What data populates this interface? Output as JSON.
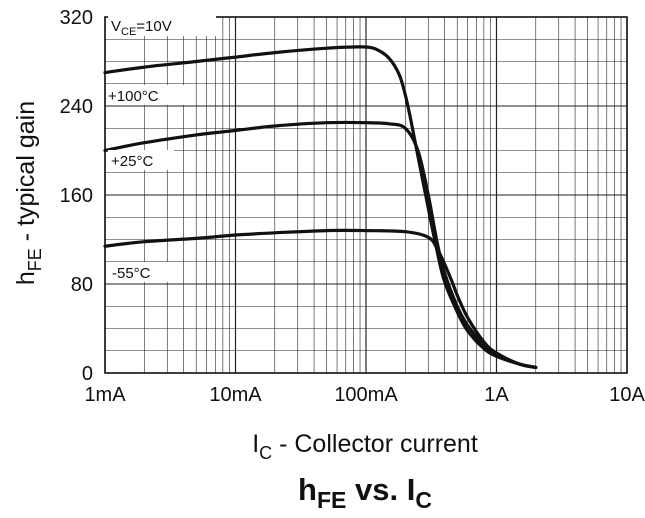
{
  "chart_data": {
    "type": "line",
    "title": "hFE vs. IC",
    "title_parts": {
      "main": "h",
      "main_sub": "FE",
      "mid": " vs. I",
      "end_sub": "C"
    },
    "xlabel": "IC - Collector current",
    "xlabel_parts": {
      "main": "I",
      "sub": "C",
      "rest": " - Collector current"
    },
    "ylabel": "hFE - typical gain",
    "ylabel_parts": {
      "main": "h",
      "sub": "FE",
      "rest": " - typical gain"
    },
    "x_scale": "log",
    "x_unit": "A",
    "xlim": [
      0.001,
      10
    ],
    "ylim": [
      0,
      320
    ],
    "grid": true,
    "x_ticks": [
      {
        "value": 0.001,
        "label": "1mA"
      },
      {
        "value": 0.01,
        "label": "10mA"
      },
      {
        "value": 0.1,
        "label": "100mA"
      },
      {
        "value": 1,
        "label": "1A"
      },
      {
        "value": 10,
        "label": "10A"
      }
    ],
    "y_ticks": [
      0,
      80,
      160,
      240,
      320
    ],
    "condition_note": {
      "main": "V",
      "sub": "CE",
      "rest": "=10V"
    },
    "series": [
      {
        "name": "+100°C",
        "x": [
          0.001,
          0.002,
          0.005,
          0.01,
          0.02,
          0.05,
          0.08,
          0.1,
          0.12,
          0.15,
          0.18,
          0.2,
          0.22,
          0.25,
          0.3,
          0.35,
          0.4,
          0.5,
          0.6,
          0.8,
          1.0,
          1.5,
          2.0
        ],
        "y": [
          270,
          275,
          280,
          284,
          288,
          292,
          293,
          293,
          291,
          283,
          268,
          250,
          228,
          195,
          148,
          110,
          82,
          55,
          38,
          22,
          15,
          8,
          5
        ]
      },
      {
        "name": "+25°C",
        "x": [
          0.001,
          0.002,
          0.005,
          0.01,
          0.02,
          0.05,
          0.1,
          0.15,
          0.2,
          0.25,
          0.3,
          0.35,
          0.4,
          0.5,
          0.6,
          0.8,
          1.0,
          1.5,
          2.0
        ],
        "y": [
          200,
          207,
          214,
          218,
          222,
          225,
          225,
          224,
          220,
          200,
          160,
          118,
          90,
          60,
          43,
          25,
          16,
          8,
          5
        ]
      },
      {
        "name": "-55°C",
        "x": [
          0.001,
          0.002,
          0.005,
          0.01,
          0.02,
          0.05,
          0.1,
          0.2,
          0.3,
          0.35,
          0.4,
          0.45,
          0.5,
          0.6,
          0.8,
          1.0,
          1.5,
          2.0
        ],
        "y": [
          114,
          118,
          121,
          124,
          126,
          128,
          128,
          127,
          122,
          112,
          98,
          84,
          70,
          50,
          28,
          18,
          8,
          5
        ]
      }
    ]
  }
}
